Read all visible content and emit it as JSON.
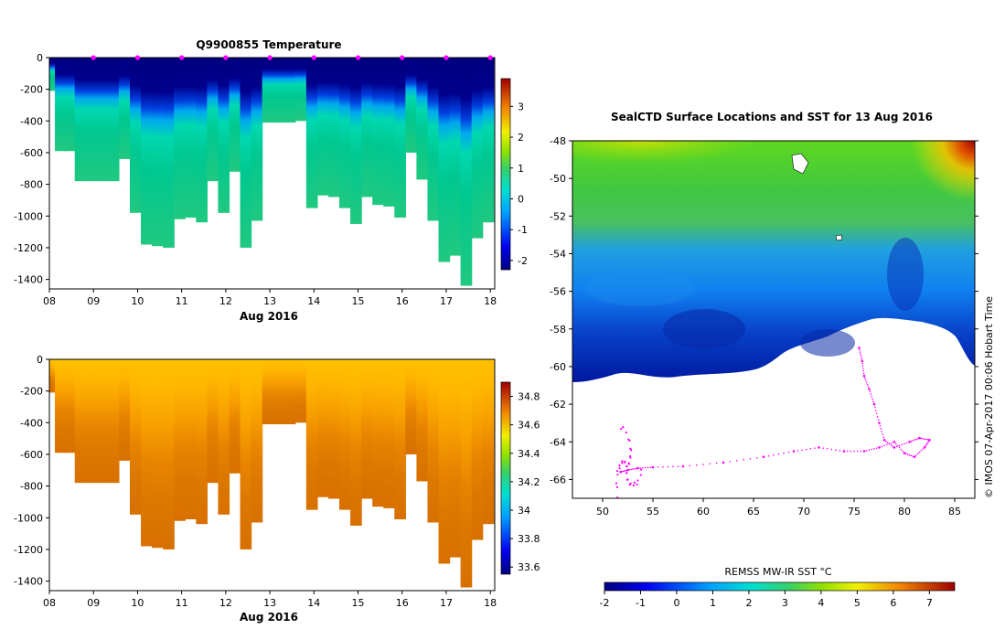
{
  "figure": {
    "temperature_panel": {
      "title": "Q9900855  Temperature",
      "xlabel": "Aug 2016",
      "colorbar_ticks": [
        "3",
        "2",
        "1",
        "0",
        "-1",
        "-2"
      ]
    },
    "salinity_panel": {
      "xlabel": "Aug 2016",
      "colorbar_ticks": [
        "34.8",
        "34.6",
        "34.4",
        "34.2",
        "34",
        "33.8",
        "33.6"
      ]
    },
    "map_panel": {
      "title": "SealCTD Surface Locations and SST for 13 Aug 2016",
      "colorbar_label": "REMSS MW-IR SST °C",
      "colorbar_ticks": [
        "-2",
        "-1",
        "0",
        "1",
        "2",
        "3",
        "4",
        "5",
        "6",
        "7"
      ],
      "credit": "© IMOS 07-Apr-2017 00:06 Hobart Time"
    }
  },
  "colors": {
    "jet_dark_blue": "#000080",
    "cyan": "#00c0f0",
    "green": "#30d070",
    "orange": "#f0a000",
    "dark_red": "#a00000",
    "track_magenta": "#ff00ff"
  },
  "chart_data": [
    {
      "type": "heatmap",
      "title": "Q9900855  Temperature",
      "xlabel": "Aug 2016",
      "ylabel": "",
      "x_tick_labels": [
        "08",
        "09",
        "10",
        "11",
        "12",
        "13",
        "14",
        "15",
        "16",
        "17",
        "18"
      ],
      "y_tick_labels": [
        "0",
        "-200",
        "-400",
        "-600",
        "-800",
        "-1000",
        "-1200",
        "-1400"
      ],
      "xlim": [
        8,
        18.1
      ],
      "ylim": [
        -1460,
        0
      ],
      "colorbar": {
        "range": [
          -2.3,
          3.9
        ],
        "ticks": [
          3,
          2,
          1,
          0,
          -1,
          -2
        ]
      },
      "profile_days": [
        8.05,
        8.25,
        8.45,
        8.7,
        8.95,
        9.2,
        9.45,
        9.7,
        9.95,
        10.2,
        10.45,
        10.7,
        10.95,
        11.2,
        11.45,
        11.7,
        11.95,
        12.2,
        12.45,
        12.7,
        12.95,
        13.2,
        13.45,
        13.7,
        13.95,
        14.2,
        14.45,
        14.7,
        14.95,
        15.2,
        15.45,
        15.7,
        15.95,
        16.2,
        16.45,
        16.7,
        16.95,
        17.2,
        17.45,
        17.7,
        17.95
      ],
      "profile_max_depth": [
        210,
        590,
        590,
        780,
        780,
        780,
        780,
        640,
        980,
        1180,
        1190,
        1200,
        1020,
        1010,
        1040,
        780,
        980,
        720,
        1200,
        1030,
        410,
        410,
        410,
        400,
        950,
        870,
        880,
        950,
        1050,
        880,
        930,
        940,
        1010,
        600,
        770,
        1030,
        1290,
        1250,
        1440,
        1140,
        1040
      ],
      "surface_profile_markers": [
        9,
        10,
        11,
        12,
        13,
        14,
        15,
        16,
        17,
        18
      ]
    },
    {
      "type": "heatmap",
      "title": "",
      "xlabel": "Aug 2016",
      "ylabel": "",
      "x_tick_labels": [
        "08",
        "09",
        "10",
        "11",
        "12",
        "13",
        "14",
        "15",
        "16",
        "17",
        "18"
      ],
      "y_tick_labels": [
        "0",
        "-200",
        "-400",
        "-600",
        "-800",
        "-1000",
        "-1200",
        "-1400"
      ],
      "xlim": [
        8,
        18.1
      ],
      "ylim": [
        -1460,
        0
      ],
      "colorbar": {
        "range": [
          33.55,
          34.9
        ],
        "ticks": [
          34.8,
          34.6,
          34.4,
          34.2,
          34,
          33.8,
          33.6
        ]
      }
    },
    {
      "type": "heatmap",
      "title": "SealCTD Surface Locations and SST for 13 Aug 2016",
      "xlabel": "",
      "ylabel": "",
      "x_tick_labels": [
        "50",
        "55",
        "60",
        "65",
        "70",
        "75",
        "80",
        "85"
      ],
      "y_tick_labels": [
        "-48",
        "-50",
        "-52",
        "-54",
        "-56",
        "-58",
        "-60",
        "-62",
        "-64",
        "-66"
      ],
      "xlim": [
        47,
        87
      ],
      "ylim": [
        -67,
        -48
      ],
      "colorbar": {
        "label": "REMSS MW-IR SST °C",
        "range": [
          -2,
          7.7
        ],
        "ticks": [
          -2,
          -1,
          0,
          1,
          2,
          3,
          4,
          5,
          6,
          7
        ]
      },
      "seal_track": {
        "lon": [
          51.8,
          52.5,
          53.5,
          55,
          58,
          62,
          66,
          69,
          71.5,
          74,
          76,
          77.5,
          79,
          80,
          81,
          82,
          82.5,
          81.5,
          80.5,
          79,
          78,
          77.5,
          77,
          76.5,
          76,
          75.8,
          75.5
        ],
        "lat": [
          -65.6,
          -65.5,
          -65.4,
          -65.35,
          -65.3,
          -65.1,
          -64.8,
          -64.5,
          -64.3,
          -64.5,
          -64.5,
          -64.3,
          -64.0,
          -64.6,
          -64.8,
          -64.3,
          -63.9,
          -63.8,
          -64.0,
          -64.3,
          -63.9,
          -63.0,
          -62.0,
          -61.2,
          -60.5,
          -59.7,
          -59.0
        ]
      }
    }
  ]
}
